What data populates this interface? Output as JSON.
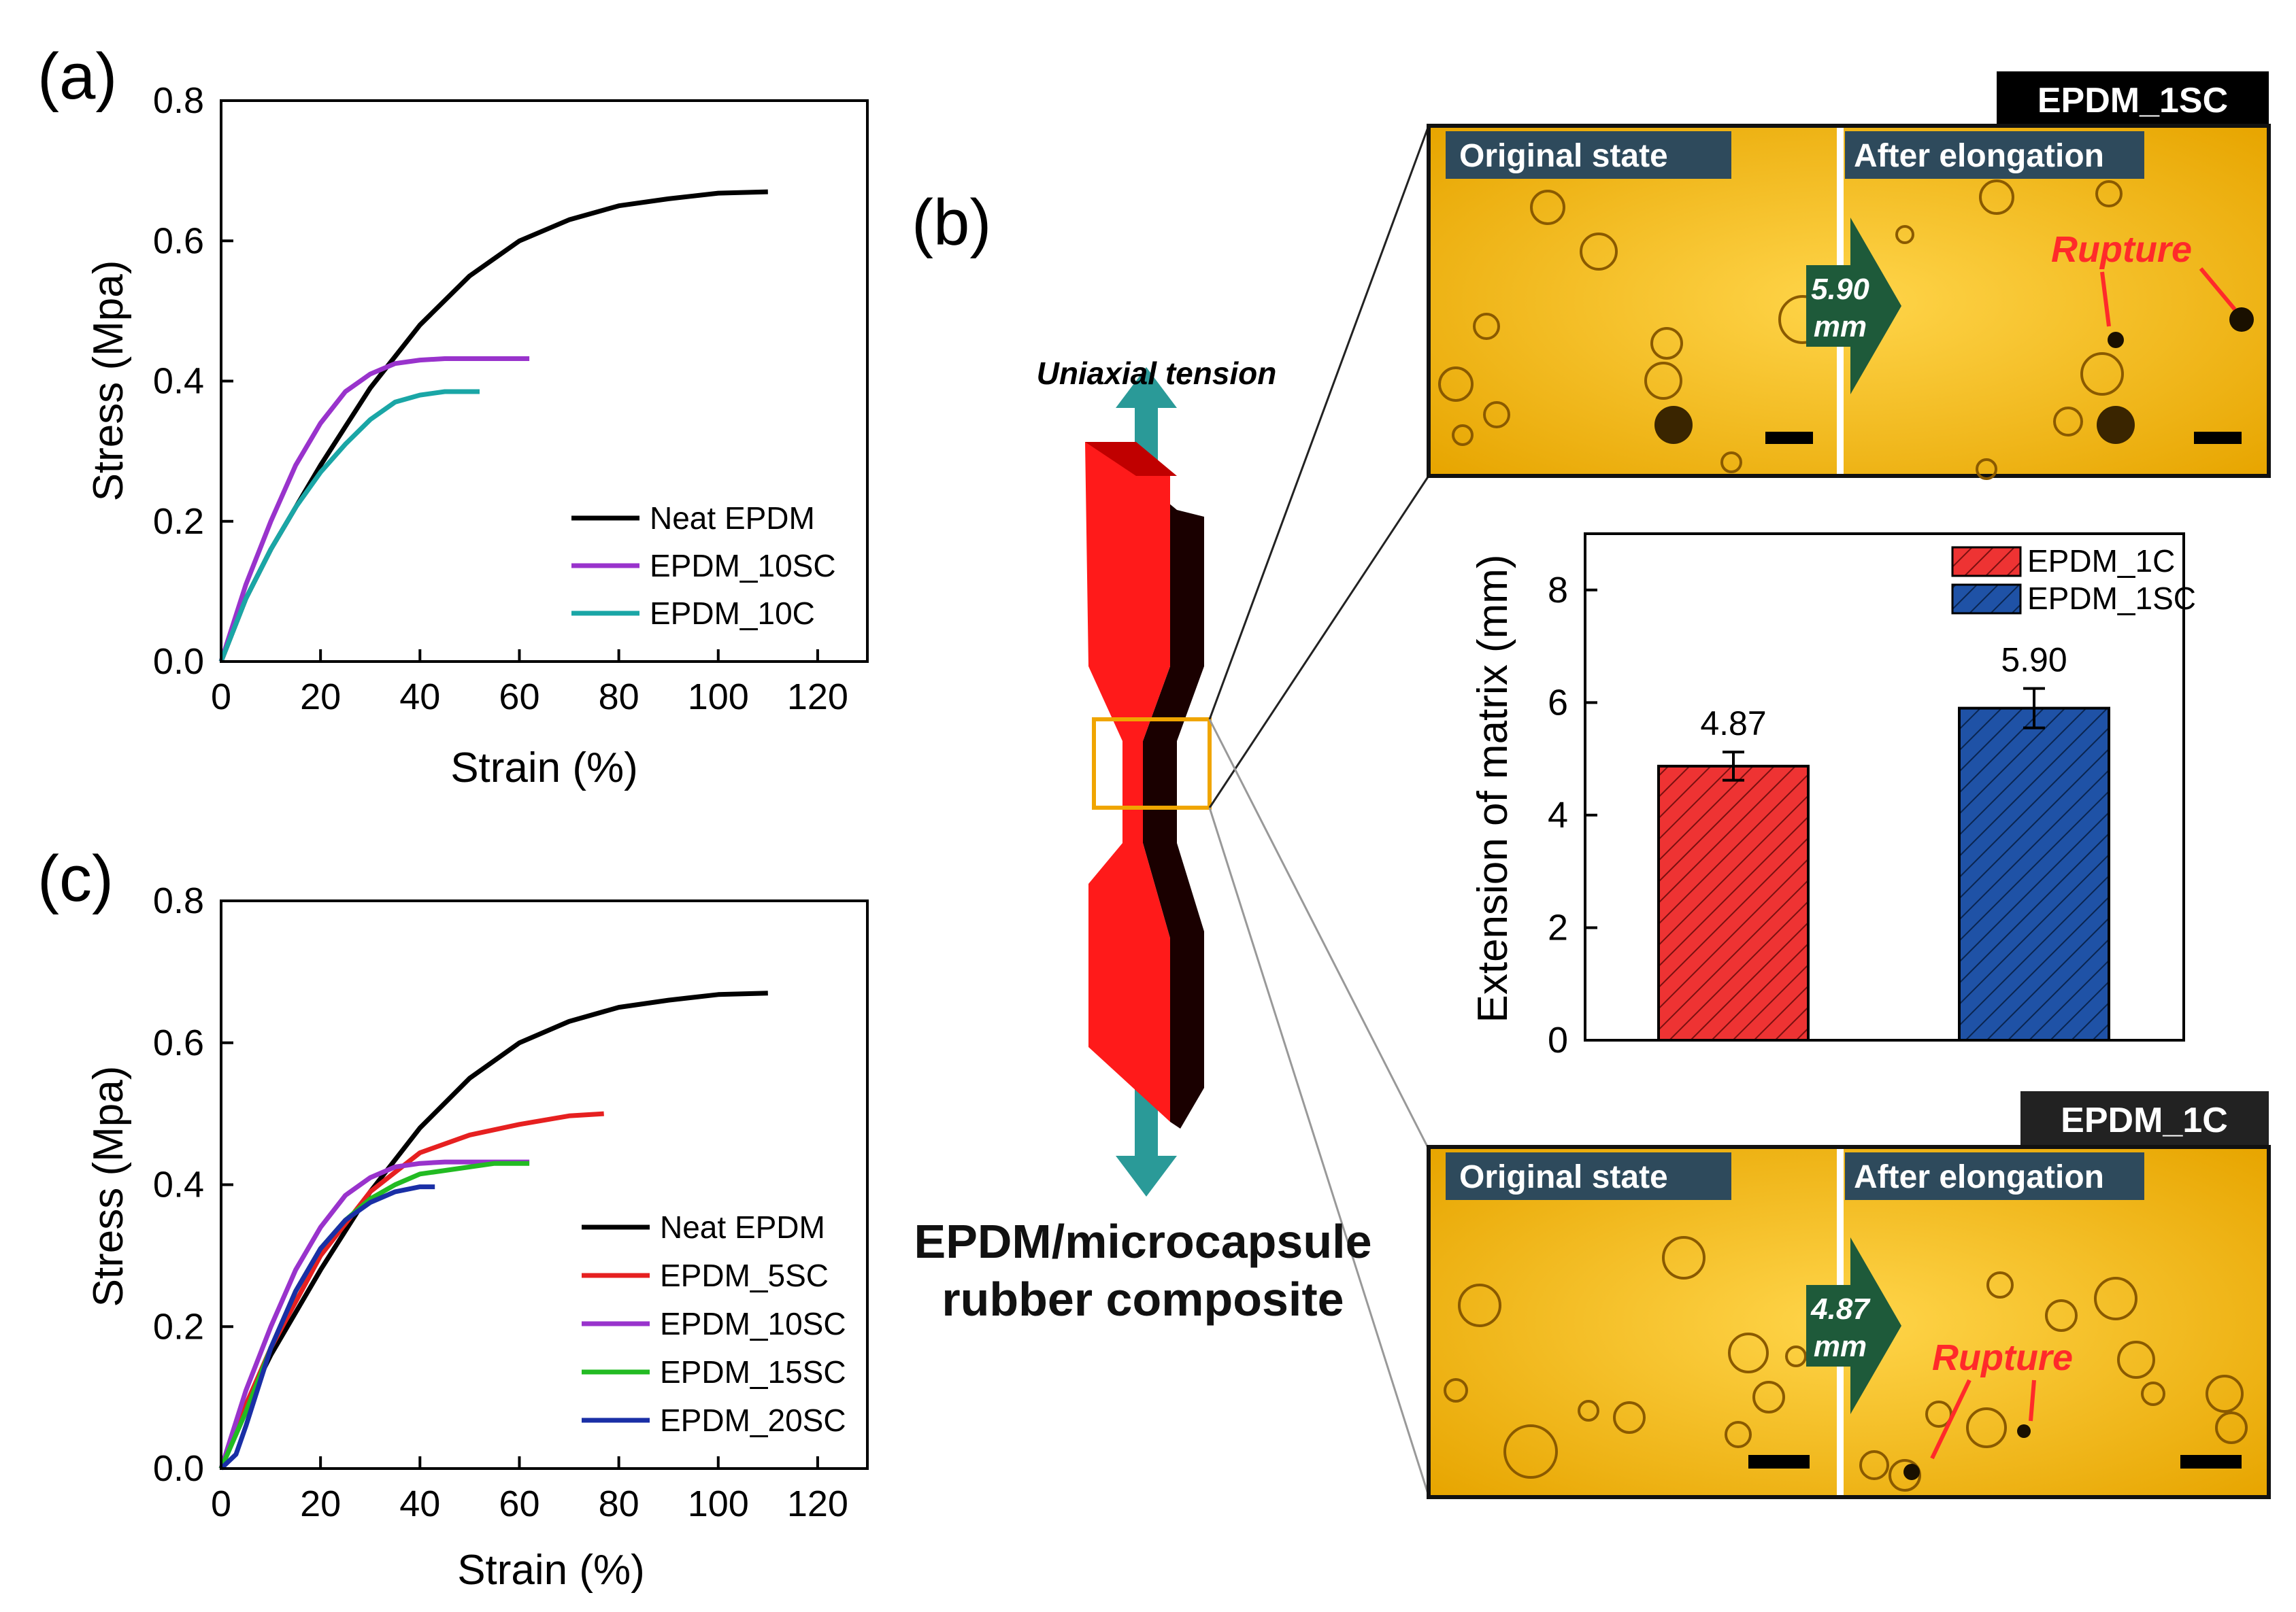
{
  "panels": {
    "a": "(a)",
    "b": "(b)",
    "c": "(c)"
  },
  "chart_data": [
    {
      "id": "a",
      "type": "line",
      "xlabel": "Strain (%)",
      "ylabel": "Stress (Mpa)",
      "xlim": [
        0,
        130
      ],
      "ylim": [
        0,
        0.8
      ],
      "xticks": [
        0,
        20,
        40,
        60,
        80,
        100,
        120
      ],
      "yticks": [
        0.0,
        0.2,
        0.4,
        0.6,
        0.8
      ],
      "ytick_labels": [
        "0.0",
        "0.2",
        "0.4",
        "0.6",
        "0.8"
      ],
      "legend_position": "lower-right",
      "series": [
        {
          "name": "Neat EPDM",
          "color": "#000000",
          "x": [
            0,
            5,
            10,
            20,
            30,
            40,
            50,
            60,
            70,
            80,
            90,
            100,
            110
          ],
          "y": [
            0,
            0.09,
            0.16,
            0.28,
            0.39,
            0.48,
            0.55,
            0.6,
            0.63,
            0.65,
            0.66,
            0.668,
            0.67
          ]
        },
        {
          "name": "EPDM_10SC",
          "color": "#9933cc",
          "x": [
            0,
            5,
            10,
            15,
            20,
            25,
            30,
            35,
            40,
            45,
            50,
            55,
            62
          ],
          "y": [
            0,
            0.11,
            0.2,
            0.28,
            0.34,
            0.385,
            0.41,
            0.425,
            0.43,
            0.432,
            0.432,
            0.432,
            0.432
          ]
        },
        {
          "name": "EPDM_10C",
          "color": "#1aa6a6",
          "x": [
            0,
            5,
            10,
            15,
            20,
            25,
            30,
            35,
            40,
            45,
            52
          ],
          "y": [
            0,
            0.09,
            0.16,
            0.22,
            0.27,
            0.31,
            0.345,
            0.37,
            0.38,
            0.385,
            0.385
          ]
        }
      ]
    },
    {
      "id": "c",
      "type": "line",
      "xlabel": "Strain (%)",
      "ylabel": "Stress (Mpa)",
      "xlim": [
        0,
        130
      ],
      "ylim": [
        0,
        0.8
      ],
      "xticks": [
        0,
        20,
        40,
        60,
        80,
        100,
        120
      ],
      "yticks": [
        0.0,
        0.2,
        0.4,
        0.6,
        0.8
      ],
      "ytick_labels": [
        "0.0",
        "0.2",
        "0.4",
        "0.6",
        "0.8"
      ],
      "legend_position": "lower-right",
      "series": [
        {
          "name": "Neat EPDM",
          "color": "#000000",
          "x": [
            0,
            5,
            10,
            20,
            30,
            40,
            50,
            60,
            70,
            80,
            90,
            100,
            110
          ],
          "y": [
            0,
            0.09,
            0.16,
            0.28,
            0.39,
            0.48,
            0.55,
            0.6,
            0.63,
            0.65,
            0.66,
            0.668,
            0.67
          ]
        },
        {
          "name": "EPDM_5SC",
          "color": "#e62020",
          "x": [
            0,
            5,
            10,
            20,
            30,
            40,
            50,
            60,
            70,
            77
          ],
          "y": [
            0,
            0.09,
            0.17,
            0.3,
            0.39,
            0.445,
            0.47,
            0.485,
            0.497,
            0.5
          ]
        },
        {
          "name": "EPDM_10SC",
          "color": "#9933cc",
          "x": [
            0,
            5,
            10,
            15,
            20,
            25,
            30,
            35,
            40,
            45,
            50,
            55,
            62
          ],
          "y": [
            0,
            0.11,
            0.2,
            0.28,
            0.34,
            0.385,
            0.41,
            0.425,
            0.43,
            0.432,
            0.432,
            0.432,
            0.432
          ]
        },
        {
          "name": "EPDM_15SC",
          "color": "#22bb22",
          "x": [
            0,
            5,
            10,
            15,
            20,
            25,
            30,
            35,
            40,
            45,
            50,
            55,
            62
          ],
          "y": [
            0,
            0.08,
            0.17,
            0.25,
            0.31,
            0.35,
            0.38,
            0.4,
            0.415,
            0.42,
            0.425,
            0.43,
            0.43
          ]
        },
        {
          "name": "EPDM_20SC",
          "color": "#1a2fa6",
          "x": [
            0,
            3,
            5,
            10,
            15,
            20,
            25,
            30,
            35,
            40,
            43
          ],
          "y": [
            0,
            0.02,
            0.06,
            0.17,
            0.25,
            0.31,
            0.35,
            0.375,
            0.39,
            0.397,
            0.397
          ]
        }
      ]
    },
    {
      "id": "b-bar",
      "type": "bar",
      "ylabel": "Extension of matrix (mm)",
      "ylim": [
        0,
        9
      ],
      "yticks": [
        0,
        2,
        4,
        6,
        8
      ],
      "categories": [
        "EPDM_1C",
        "EPDM_1SC"
      ],
      "values": [
        4.87,
        5.9
      ],
      "value_labels": [
        "4.87",
        "5.90"
      ],
      "errors": [
        0.25,
        0.35
      ],
      "colors": [
        "#ee3333",
        "#1f52a6"
      ],
      "legend": [
        "EPDM_1C",
        "EPDM_1SC"
      ],
      "legend_position": "top-right"
    }
  ],
  "diagram": {
    "tension_label": "Uniaxial tension",
    "caption_line1": "EPDM/microcapsule",
    "caption_line2": "rubber composite"
  },
  "micrographs": {
    "top": {
      "banner": "EPDM_1SC",
      "left_label": "Original state",
      "right_label": "After elongation",
      "arrow_value": "5.90",
      "arrow_unit": "mm",
      "rupture": "Rupture"
    },
    "bottom": {
      "banner": "EPDM_1C",
      "left_label": "Original state",
      "right_label": "After elongation",
      "arrow_value": "4.87",
      "arrow_unit": "mm",
      "rupture": "Rupture"
    }
  }
}
